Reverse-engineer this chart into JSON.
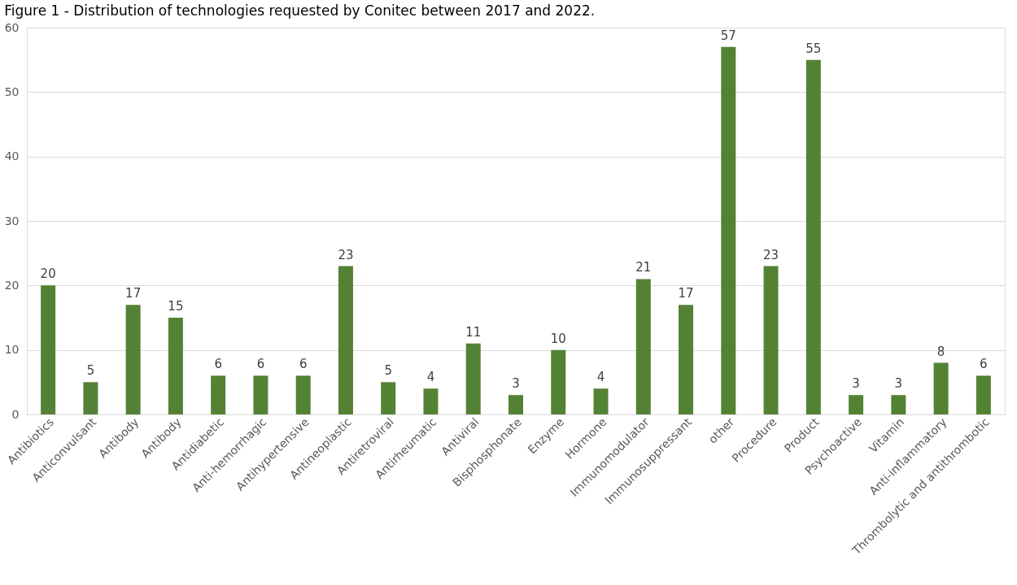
{
  "chart_data": {
    "type": "bar",
    "title": "Figure 1 - Distribution of technologies requested by Conitec between 2017 and 2022.",
    "categories": [
      "Antibiotics",
      "Anticonvulsant",
      "Antibody",
      "Antibody",
      "Antidiabetic",
      "Anti-hemorrhagic",
      "Antihypertensive",
      "Antineoplastic",
      "Antiretroviral",
      "Antirheumatic",
      "Antiviral",
      "Bisphosphonate",
      "Enzyme",
      "Hormone",
      "Immunomodulator",
      "Immunosuppressant",
      "other",
      "Procedure",
      "Product",
      "Psychoactive",
      "Vitamin",
      "Anti-inflammatory",
      "Thrombolytic and antithrombotic"
    ],
    "values": [
      20,
      5,
      17,
      15,
      6,
      6,
      6,
      23,
      5,
      4,
      11,
      3,
      10,
      4,
      21,
      17,
      57,
      23,
      55,
      3,
      3,
      8,
      6
    ],
    "color": "#548235",
    "ylim": [
      0,
      60
    ],
    "yticks": [
      0,
      10,
      20,
      30,
      40,
      50,
      60
    ],
    "grid": "y",
    "data_labels": true
  }
}
